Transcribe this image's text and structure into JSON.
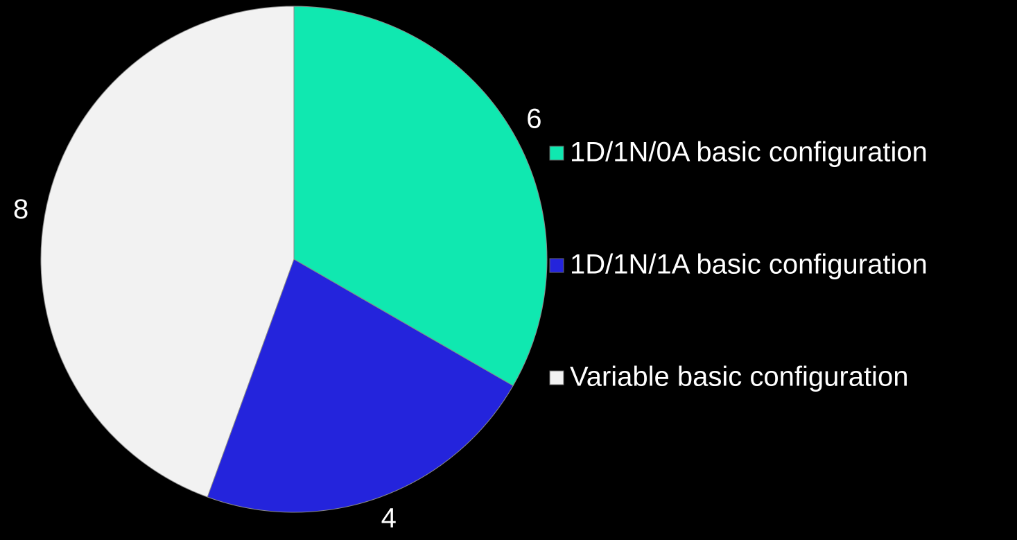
{
  "chart_data": {
    "type": "pie",
    "categories": [
      "1D/1N/0A basic configuration",
      "1D/1N/1A basic configuration",
      "Variable basic configuration"
    ],
    "values": [
      6,
      4,
      8
    ],
    "colors": [
      "#10e8b0",
      "#2424dc",
      "#f2f2f2"
    ],
    "legend": "right"
  }
}
